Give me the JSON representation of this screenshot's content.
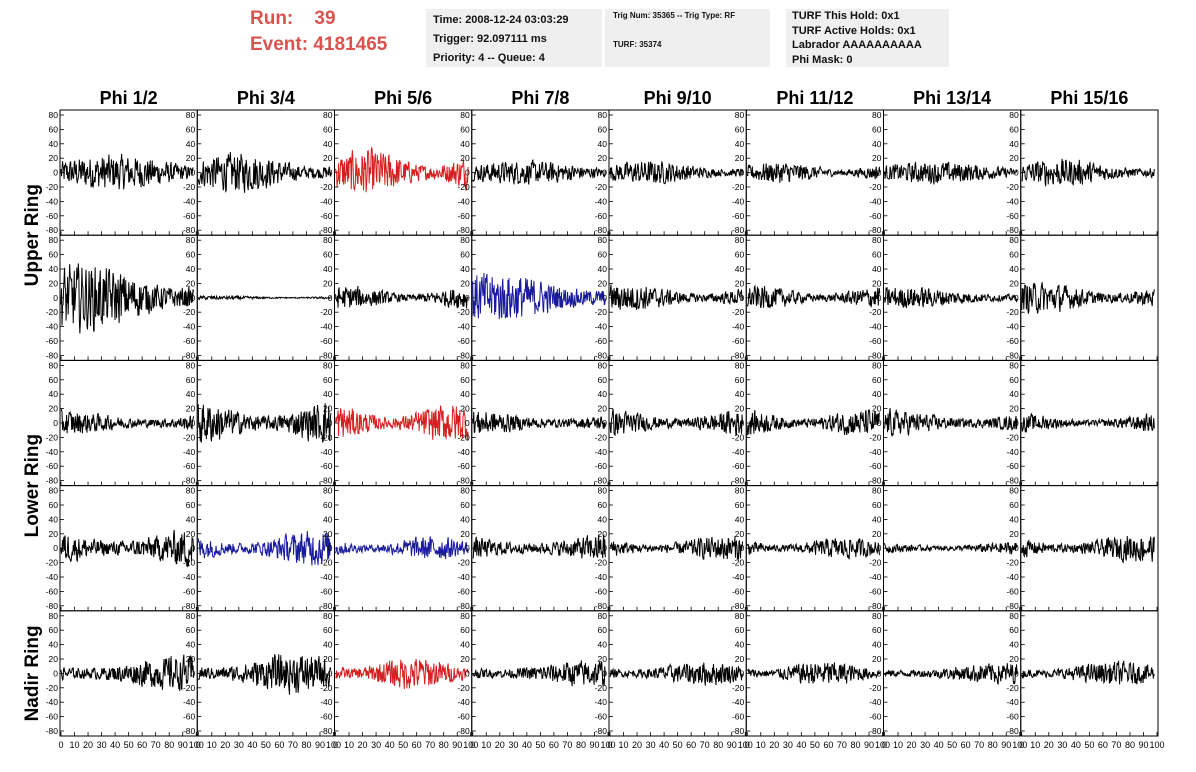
{
  "header": {
    "run_label": "Run:",
    "run_value": "39",
    "event_label": "Event:",
    "event_value": "4181465",
    "time": "Time: 2008-12-24 03:03:29",
    "trigger": "Trigger: 92.097111 ms",
    "priority": "Priority: 4 -- Queue: 4",
    "trig_num": "Trig Num: 35365 -- Trig Type: RF",
    "turf": "TURF: 35374",
    "turf_this_hold": "TURF This Hold: 0x1",
    "turf_active_holds": "TURF Active Holds: 0x1",
    "labrador": "Labrador AAAAAAAAAA",
    "phi_mask": "Phi Mask: 0"
  },
  "colors": {
    "header_red": "#d9534f",
    "trace_black": "#000000",
    "trace_red": "#d42020",
    "trace_blue": "#1a1a9e",
    "box_gray": "#efefef"
  },
  "chart_data": {
    "type": "line",
    "columns": [
      "Phi 1/2",
      "Phi 3/4",
      "Phi 5/6",
      "Phi 7/8",
      "Phi 9/10",
      "Phi 11/12",
      "Phi 13/14",
      "Phi 15/16"
    ],
    "row_labels": [
      {
        "text": "Upper Ring",
        "rows": [
          0,
          1
        ]
      },
      {
        "text": "Lower Ring",
        "rows": [
          2,
          3
        ]
      },
      {
        "text": "Nadir Ring",
        "rows": [
          4
        ]
      }
    ],
    "xlim": [
      0,
      100
    ],
    "ylim": [
      -80,
      80
    ],
    "xticks": [
      0,
      10,
      20,
      30,
      40,
      50,
      60,
      70,
      80,
      90,
      100
    ],
    "yticks": [
      -80,
      -60,
      -40,
      -20,
      0,
      20,
      40,
      60,
      80
    ],
    "trace_x_range": [
      0,
      98
    ],
    "panels": [
      [
        {
          "amp": 18,
          "color": "black"
        },
        {
          "amp": 20,
          "color": "black"
        },
        {
          "amp": 24,
          "color": "red"
        },
        {
          "amp": 12,
          "color": "black"
        },
        {
          "amp": 12,
          "color": "black"
        },
        {
          "amp": 11,
          "color": "black"
        },
        {
          "amp": 11,
          "color": "black"
        },
        {
          "amp": 14,
          "color": "black"
        }
      ],
      [
        {
          "amp": 34,
          "color": "black"
        },
        {
          "amp": 2,
          "color": "black"
        },
        {
          "amp": 12,
          "color": "black"
        },
        {
          "amp": 26,
          "color": "blue"
        },
        {
          "amp": 14,
          "color": "black"
        },
        {
          "amp": 12,
          "color": "black"
        },
        {
          "amp": 11,
          "color": "black"
        },
        {
          "amp": 16,
          "color": "black"
        }
      ],
      [
        {
          "amp": 14,
          "color": "black"
        },
        {
          "amp": 24,
          "color": "black"
        },
        {
          "amp": 20,
          "color": "red"
        },
        {
          "amp": 14,
          "color": "black"
        },
        {
          "amp": 15,
          "color": "black"
        },
        {
          "amp": 14,
          "color": "black"
        },
        {
          "amp": 15,
          "color": "black"
        },
        {
          "amp": 10,
          "color": "black"
        }
      ],
      [
        {
          "amp": 24,
          "color": "black"
        },
        {
          "amp": 18,
          "color": "blue"
        },
        {
          "amp": 12,
          "color": "blue"
        },
        {
          "amp": 17,
          "color": "black"
        },
        {
          "amp": 13,
          "color": "black"
        },
        {
          "amp": 11,
          "color": "black"
        },
        {
          "amp": 8,
          "color": "black"
        },
        {
          "amp": 14,
          "color": "black"
        }
      ],
      [
        {
          "amp": 18,
          "color": "black"
        },
        {
          "amp": 20,
          "color": "black"
        },
        {
          "amp": 17,
          "color": "red"
        },
        {
          "amp": 14,
          "color": "black"
        },
        {
          "amp": 12,
          "color": "black"
        },
        {
          "amp": 13,
          "color": "black"
        },
        {
          "amp": 11,
          "color": "black"
        },
        {
          "amp": 12,
          "color": "black"
        }
      ]
    ]
  }
}
